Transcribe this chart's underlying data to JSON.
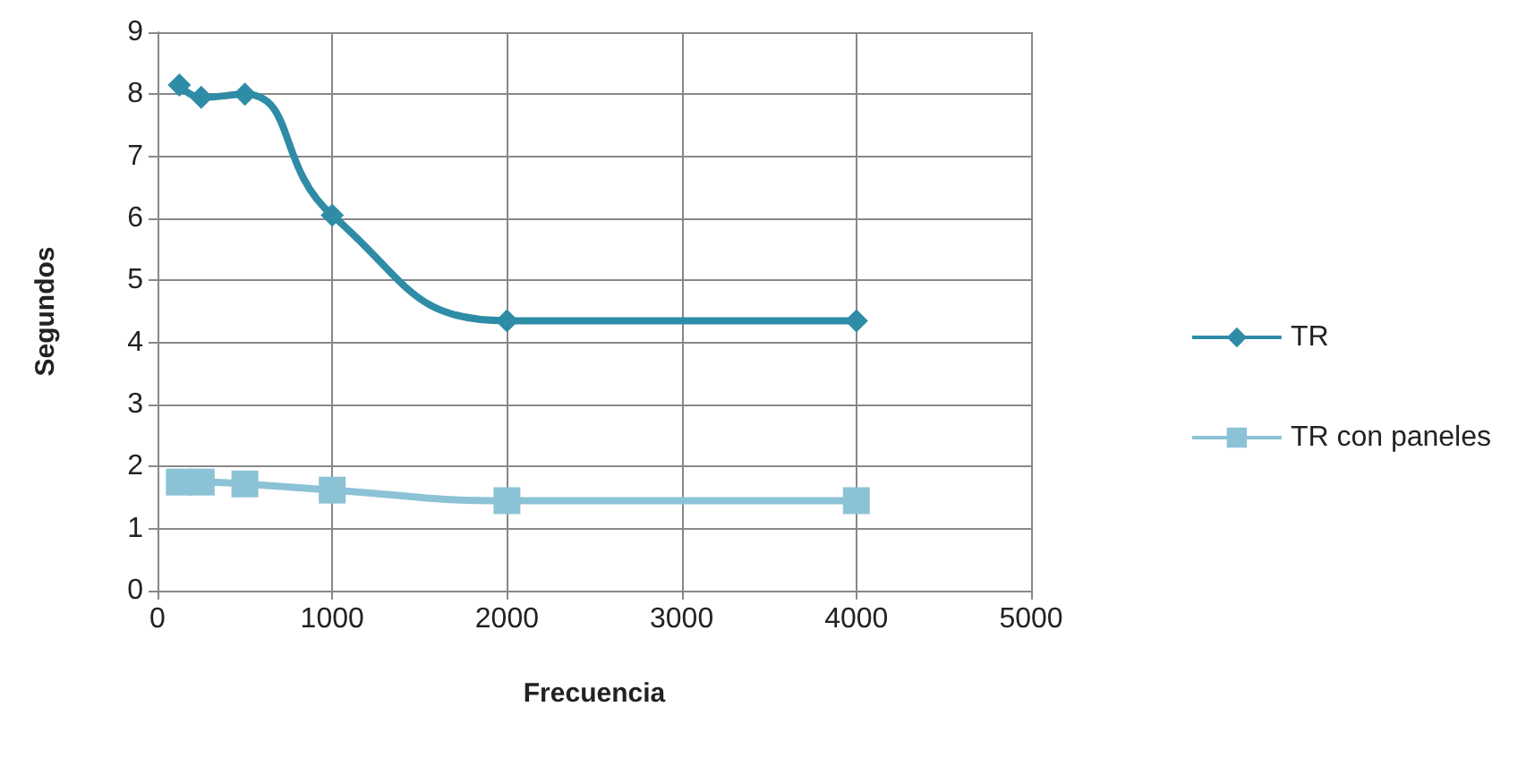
{
  "chart_data": {
    "type": "line",
    "xlabel": "Frecuencia",
    "ylabel": "Segundos",
    "x": [
      125,
      250,
      500,
      1000,
      2000,
      4000
    ],
    "series": [
      {
        "name": "TR",
        "color": "#2f8ca6",
        "marker": "diamond",
        "values": [
          8.15,
          7.95,
          8.0,
          6.05,
          4.35,
          4.35
        ]
      },
      {
        "name": "TR con paneles",
        "color": "#8cc2d6",
        "marker": "square",
        "values": [
          1.75,
          1.75,
          1.72,
          1.62,
          1.45,
          1.45
        ]
      }
    ],
    "xlim": [
      0,
      5000
    ],
    "xticks": [
      0,
      1000,
      2000,
      3000,
      4000,
      5000
    ],
    "ylim": [
      0,
      9
    ],
    "yticks": [
      0,
      1,
      2,
      3,
      4,
      5,
      6,
      7,
      8,
      9
    ],
    "grid": true,
    "legend": "right"
  }
}
